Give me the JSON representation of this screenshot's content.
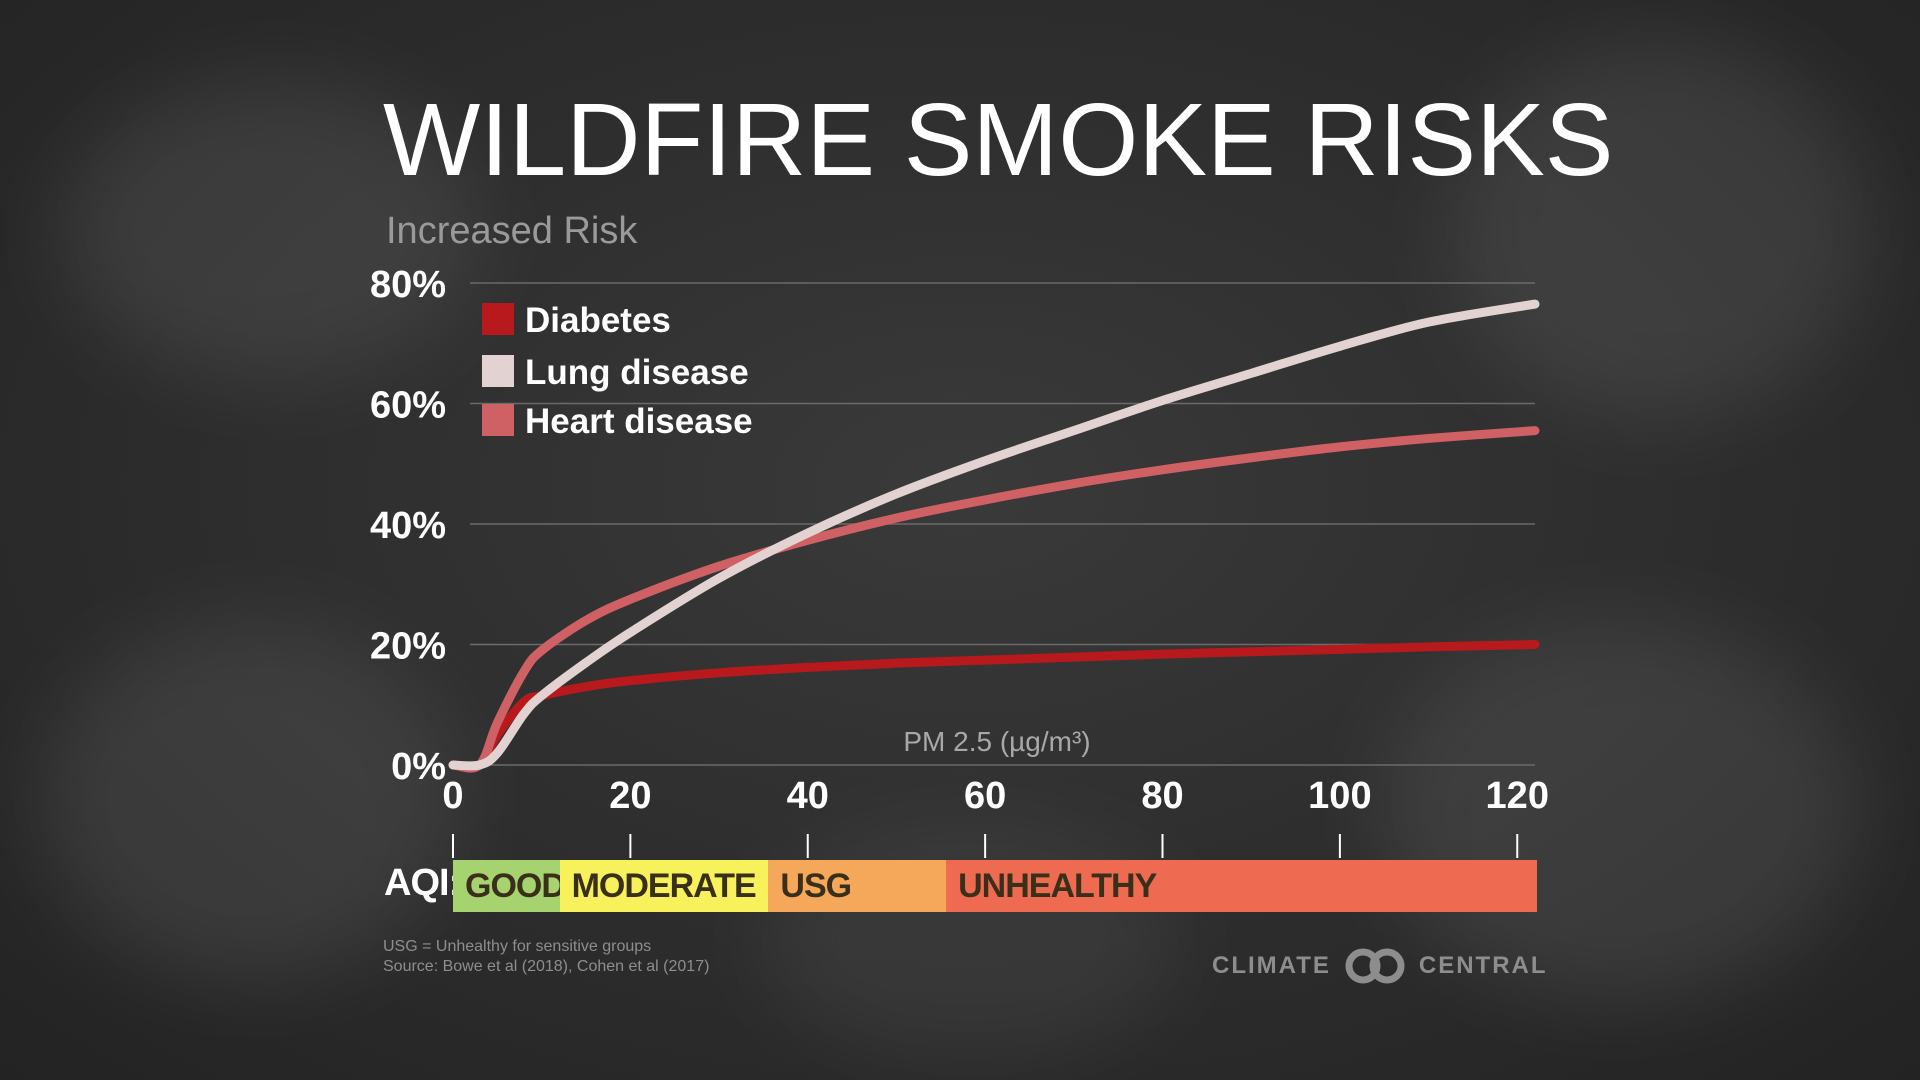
{
  "title": "WILDFIRE SMOKE RISKS",
  "y_axis_title": "Increased Risk",
  "x_axis_title": "PM 2.5 (µg/m³)",
  "aqi": {
    "label": "AQI:",
    "segments": [
      {
        "name": "GOOD",
        "from": 0,
        "to": 12,
        "color": "#a6d36f"
      },
      {
        "name": "MODERATE",
        "from": 12,
        "to": 35.5,
        "color": "#f7f25c"
      },
      {
        "name": "USG",
        "from": 35.5,
        "to": 55.5,
        "color": "#f6a85a"
      },
      {
        "name": "UNHEALTHY",
        "from": 55.5,
        "to": 122,
        "color": "#ee6b52"
      }
    ]
  },
  "footnote": {
    "line1": "USG = Unhealthy for sensitive groups",
    "line2": "Source: Bowe et al (2018), Cohen et al (2017)"
  },
  "logo": {
    "left_text": "CLIMATE",
    "right_text": "CENTRAL"
  },
  "colors": {
    "diabetes": "#b8191c",
    "lung": "#e2d3d2",
    "heart": "#cf6164",
    "gridline": "#6a6a6a"
  },
  "chart_data": {
    "type": "line",
    "title": "WILDFIRE SMOKE RISKS",
    "xlabel": "PM 2.5 (µg/m³)",
    "ylabel": "Increased Risk",
    "xlim": [
      0,
      122
    ],
    "ylim": [
      0,
      80
    ],
    "x_ticks": [
      "0",
      "20",
      "40",
      "60",
      "80",
      "100",
      "120"
    ],
    "x_tick_values": [
      0,
      20,
      40,
      60,
      80,
      100,
      120
    ],
    "y_ticks": [
      "0%",
      "20%",
      "40%",
      "60%",
      "80%"
    ],
    "y_tick_values": [
      0,
      20,
      40,
      60,
      80
    ],
    "grid": true,
    "legend_position": "top-left",
    "series": [
      {
        "name": "Diabetes",
        "color": "#b8191c",
        "x": [
          0,
          3,
          5,
          8,
          10,
          15,
          20,
          30,
          40,
          50,
          60,
          70,
          80,
          90,
          100,
          110,
          122
        ],
        "y": [
          0,
          0,
          5,
          10.5,
          11.5,
          13,
          14,
          15.3,
          16.2,
          16.9,
          17.4,
          17.9,
          18.4,
          18.8,
          19.2,
          19.6,
          20
        ]
      },
      {
        "name": "Lung disease",
        "color": "#e2d3d2",
        "x": [
          0,
          3,
          5,
          8,
          10,
          15,
          20,
          30,
          40,
          50,
          60,
          70,
          80,
          90,
          100,
          110,
          122
        ],
        "y": [
          0,
          0,
          2,
          8.5,
          11.5,
          17,
          22,
          31,
          38.5,
          45,
          50.5,
          55.5,
          60.5,
          65,
          69.5,
          73.5,
          76.5
        ]
      },
      {
        "name": "Heart disease",
        "color": "#cf6164",
        "x": [
          0,
          3,
          5,
          8,
          10,
          15,
          20,
          30,
          40,
          50,
          60,
          70,
          80,
          90,
          100,
          110,
          122
        ],
        "y": [
          0,
          0,
          7,
          15.5,
          19,
          24,
          27.5,
          33,
          37.3,
          41,
          44,
          46.7,
          49,
          51,
          52.8,
          54.2,
          55.5
        ]
      }
    ]
  }
}
